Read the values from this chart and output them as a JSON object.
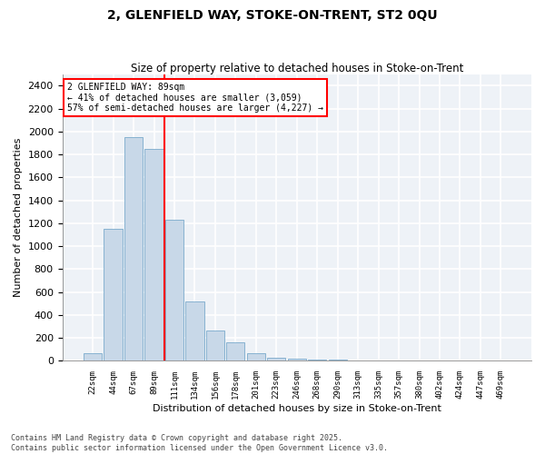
{
  "title_line1": "2, GLENFIELD WAY, STOKE-ON-TRENT, ST2 0QU",
  "title_line2": "Size of property relative to detached houses in Stoke-on-Trent",
  "xlabel": "Distribution of detached houses by size in Stoke-on-Trent",
  "ylabel": "Number of detached properties",
  "categories": [
    "22sqm",
    "44sqm",
    "67sqm",
    "89sqm",
    "111sqm",
    "134sqm",
    "156sqm",
    "178sqm",
    "201sqm",
    "223sqm",
    "246sqm",
    "268sqm",
    "290sqm",
    "313sqm",
    "335sqm",
    "357sqm",
    "380sqm",
    "402sqm",
    "424sqm",
    "447sqm",
    "469sqm"
  ],
  "values": [
    70,
    1150,
    1950,
    1850,
    1230,
    520,
    265,
    165,
    70,
    30,
    20,
    15,
    15,
    5,
    3,
    2,
    1,
    1,
    1,
    0,
    0
  ],
  "bar_color": "#c8d8e8",
  "bar_edge_color": "#7aaacc",
  "vline_color": "red",
  "vline_index": 3,
  "annotation_text": "2 GLENFIELD WAY: 89sqm\n← 41% of detached houses are smaller (3,059)\n57% of semi-detached houses are larger (4,227) →",
  "annotation_box_color": "white",
  "annotation_box_edge_color": "red",
  "ylim": [
    0,
    2500
  ],
  "yticks": [
    0,
    200,
    400,
    600,
    800,
    1000,
    1200,
    1400,
    1600,
    1800,
    2000,
    2200,
    2400
  ],
  "background_color": "#eef2f7",
  "grid_color": "white",
  "footer_line1": "Contains HM Land Registry data © Crown copyright and database right 2025.",
  "footer_line2": "Contains public sector information licensed under the Open Government Licence v3.0."
}
